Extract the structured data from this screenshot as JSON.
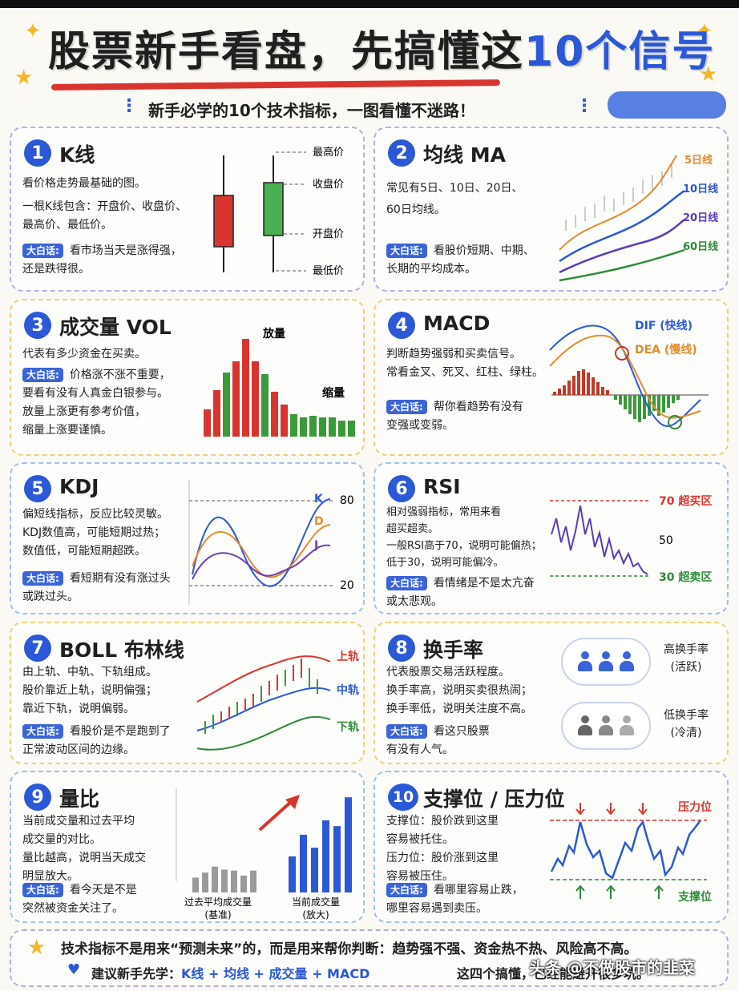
{
  "header": {
    "title_black": "股票新手看盘，先搞懂这",
    "title_blue": "10个信号",
    "subtitle": "新手必学的10个技术指标，一图看懂不迷路！"
  },
  "tag_label": "大白话:",
  "cards": [
    {
      "num": "1",
      "title": "K线",
      "desc": [
        "看价格走势最基础的图。",
        "一根K线包含：开盘价、收盘价、",
        "最高价、最低价。"
      ],
      "tip": [
        "看市场当天是涨得强，",
        "还是跌得很。"
      ],
      "labels": [
        "最高价",
        "收盘价",
        "开盘价",
        "最低价"
      ]
    },
    {
      "num": "2",
      "title": "均线 MA",
      "desc": [
        "常见有5日、10日、20日、",
        "60日均线。"
      ],
      "tip": [
        "看股价短期、中期、",
        "长期的平均成本。"
      ],
      "labels": [
        "5日线",
        "10日线",
        "20日线",
        "60日线"
      ]
    },
    {
      "num": "3",
      "title": "成交量 VOL",
      "desc": [
        "代表有多少资金在买卖。"
      ],
      "tip": [
        "价格涨不涨不重要，",
        "要看有没有人真金白银参与。",
        "放量上涨更有参考价值，",
        "缩量上涨要谨慎。"
      ],
      "labels": [
        "放量",
        "缩量"
      ]
    },
    {
      "num": "4",
      "title": "MACD",
      "desc": [
        "判断趋势强弱和买卖信号。",
        "常看金叉、死叉、红柱、绿柱。"
      ],
      "tip": [
        "帮你看趋势有没有",
        "变强或变弱。"
      ],
      "labels": [
        "DIF (快线)",
        "DEA (慢线)"
      ]
    },
    {
      "num": "5",
      "title": "KDJ",
      "desc": [
        "偏短线指标，反应比较灵敏。",
        "KDJ数值高，可能短期过热；",
        "数值低，可能短期超跌。"
      ],
      "tip": [
        "看短期有没有涨过头",
        "或跌过头。"
      ],
      "labels": [
        "K",
        "D",
        "J",
        "80",
        "20"
      ]
    },
    {
      "num": "6",
      "title": "RSI",
      "desc": [
        "相对强弱指标，常用来看",
        "超买超卖。",
        "一般RSI高于70，说明可能偏热；",
        "低于30，说明可能偏冷。"
      ],
      "tip": [
        "看情绪是不是太亢奋",
        "或太悲观。"
      ],
      "labels": [
        "70 超买区",
        "50",
        "30 超卖区"
      ]
    },
    {
      "num": "7",
      "title": "BOLL 布林线",
      "desc": [
        "由上轨、中轨、下轨组成。",
        "股价靠近上轨，说明偏强；",
        "靠近下轨，说明偏弱。"
      ],
      "tip": [
        "看股价是不是跑到了",
        "正常波动区间的边缘。"
      ],
      "labels": [
        "上轨",
        "中轨",
        "下轨"
      ]
    },
    {
      "num": "8",
      "title": "换手率",
      "desc": [
        "代表股票交易活跃程度。",
        "换手率高，说明买卖很热闹；",
        "换手率低，说明关注度不高。"
      ],
      "tip": [
        "看这只股票",
        "有没有人气。"
      ],
      "labels": [
        "高换手率",
        "(活跃)",
        "低换手率",
        "(冷清)"
      ]
    },
    {
      "num": "9",
      "title": "量比",
      "desc": [
        "当前成交量和过去平均",
        "成交量的对比。",
        "量比越高，说明当天成交",
        "明显放大。"
      ],
      "tip": [
        "看今天是不是",
        "突然被资金关注了。"
      ],
      "labels": [
        "过去平均成交量",
        "(基准)",
        "当前成交量",
        "(放大)"
      ]
    },
    {
      "num": "10",
      "title": "支撑位 / 压力位",
      "desc": [
        "支撑位：股价跌到这里",
        "容易被托住。",
        "压力位：股价涨到这里",
        "容易被压住。"
      ],
      "tip": [
        "看哪里容易止跌，",
        "哪里容易遇到卖压。"
      ],
      "labels": [
        "压力位",
        "支撑位"
      ]
    }
  ],
  "footer": {
    "line1": "技术指标不是用来“预测未来”的，而是用来帮你判断：趋势强不强、资金热不热、风险高不高。",
    "line2_prefix": "建议新手先学：",
    "line2_highlight": "K线 + 均线 + 成交量 + MACD",
    "line2_suffix": "这四个搞懂，已经能避开很多坑。"
  },
  "watermark": "头条 @不做股市的韭菜",
  "colors": {
    "accent": "#2b58d6",
    "up": "#d9352f",
    "down": "#3a9a3a",
    "tag": "#3a64d8"
  },
  "chart_data": [
    {
      "type": "bar",
      "title": "成交量 VOL",
      "values": [
        34,
        58,
        80,
        94,
        122,
        94,
        78,
        56,
        40,
        28,
        24,
        26,
        24,
        24,
        20,
        20
      ],
      "colors": [
        "red",
        "red",
        "green",
        "red",
        "red",
        "red",
        "green",
        "red",
        "red",
        "green",
        "green",
        "green",
        "green",
        "green",
        "green",
        "green"
      ]
    },
    {
      "type": "bar",
      "title": "量比",
      "series": [
        {
          "name": "过去平均成交量",
          "values": [
            30,
            40,
            52,
            46,
            44,
            34,
            44
          ]
        },
        {
          "name": "当前成交量",
          "values": [
            50,
            80,
            62,
            100,
            92,
            132
          ]
        }
      ]
    }
  ]
}
